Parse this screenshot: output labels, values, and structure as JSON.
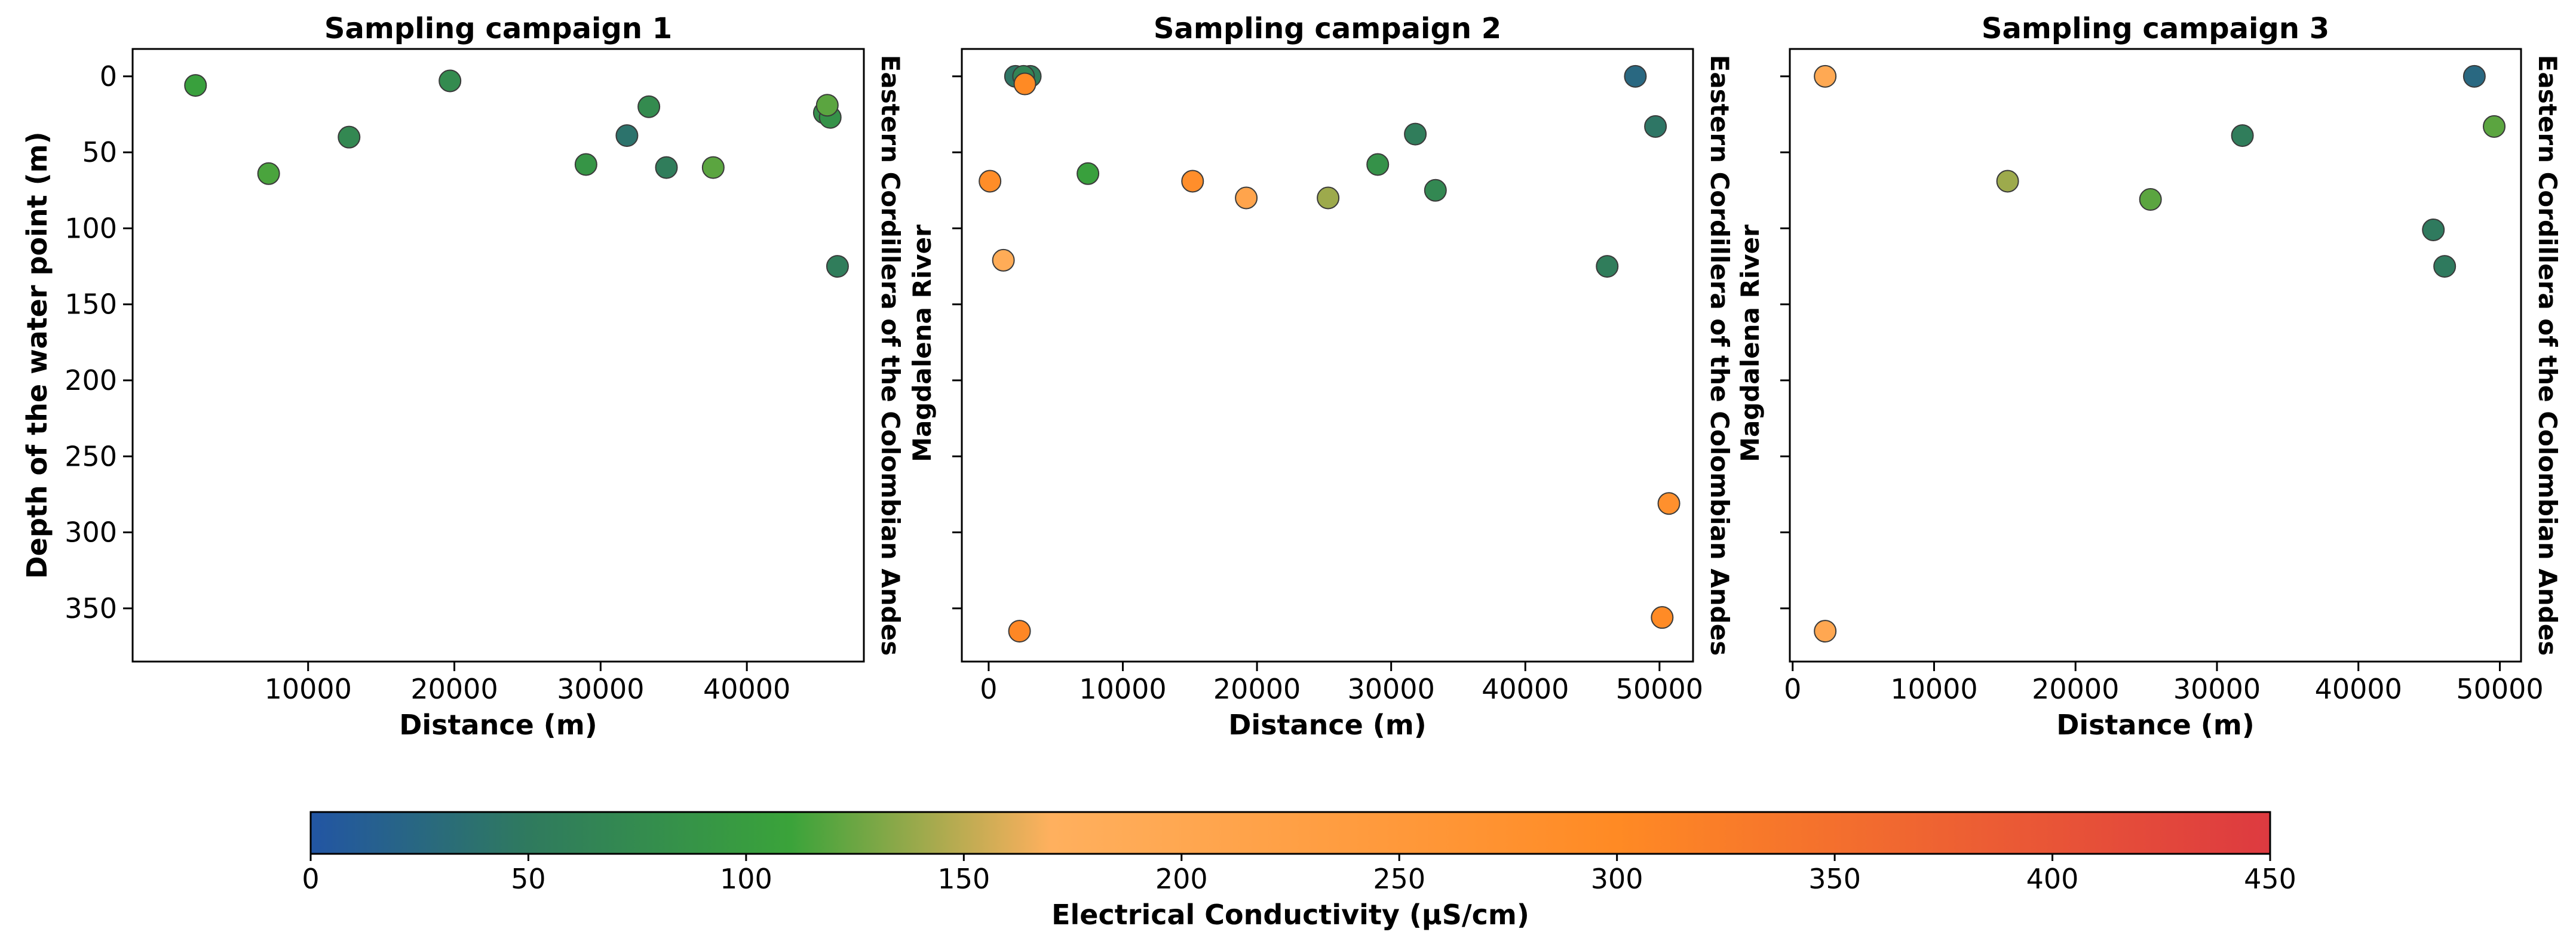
{
  "chart_data": {
    "type": "scatter",
    "ylabel": "Depth of the water point (m)",
    "xlabel": "Distance (m)",
    "y_ticks": [
      0,
      50,
      100,
      150,
      200,
      250,
      300,
      350
    ],
    "ylim": [
      385,
      -18
    ],
    "colorbar": {
      "label": "Electrical Conductivity (μS/cm)",
      "range": [
        0,
        450
      ],
      "ticks": [
        0,
        50,
        100,
        150,
        200,
        250,
        300,
        350,
        400,
        450
      ],
      "colors": [
        "#2255a4",
        "#2f7a5e",
        "#3aa33a",
        "#ffb05e",
        "#ff8a24",
        "#dd3a40"
      ],
      "stops": [
        0,
        50,
        110,
        170,
        300,
        450
      ]
    },
    "panels": [
      {
        "title": "Sampling campaign 1",
        "xlim": [
          -2000,
          48000
        ],
        "x_ticks": [
          10000,
          20000,
          30000,
          40000
        ],
        "right_label": "Eastern Cordillera of the Colombian Andes",
        "left_label": "",
        "show_y_ticklabels": true,
        "points": [
          {
            "x": 2300,
            "y": 6,
            "ec": 105
          },
          {
            "x": 7300,
            "y": 64,
            "ec": 115
          },
          {
            "x": 12800,
            "y": 40,
            "ec": 70
          },
          {
            "x": 19700,
            "y": 3,
            "ec": 75
          },
          {
            "x": 29000,
            "y": 58,
            "ec": 90
          },
          {
            "x": 31800,
            "y": 39,
            "ec": 40
          },
          {
            "x": 33300,
            "y": 20,
            "ec": 75
          },
          {
            "x": 34500,
            "y": 60,
            "ec": 55
          },
          {
            "x": 37700,
            "y": 60,
            "ec": 120
          },
          {
            "x": 45300,
            "y": 24,
            "ec": 80
          },
          {
            "x": 45700,
            "y": 27,
            "ec": 85
          },
          {
            "x": 45500,
            "y": 19,
            "ec": 120
          },
          {
            "x": 46200,
            "y": 125,
            "ec": 55
          }
        ]
      },
      {
        "title": "Sampling campaign 2",
        "xlim": [
          -2000,
          52500
        ],
        "x_ticks": [
          0,
          10000,
          20000,
          30000,
          40000,
          50000
        ],
        "right_label": "Eastern Cordillera of the Colombian Andes",
        "left_label": "Magdalena River",
        "show_y_ticklabels": false,
        "points": [
          {
            "x": 2000,
            "y": 0,
            "ec": 45
          },
          {
            "x": 3100,
            "y": 0,
            "ec": 55
          },
          {
            "x": 2600,
            "y": 0,
            "ec": 65
          },
          {
            "x": 2700,
            "y": 5,
            "ec": 300
          },
          {
            "x": 100,
            "y": 69,
            "ec": 290
          },
          {
            "x": 1100,
            "y": 121,
            "ec": 185
          },
          {
            "x": 2300,
            "y": 365,
            "ec": 305
          },
          {
            "x": 7400,
            "y": 64,
            "ec": 105
          },
          {
            "x": 15200,
            "y": 69,
            "ec": 285
          },
          {
            "x": 19200,
            "y": 80,
            "ec": 210
          },
          {
            "x": 25300,
            "y": 80,
            "ec": 140
          },
          {
            "x": 29000,
            "y": 58,
            "ec": 85
          },
          {
            "x": 31800,
            "y": 38,
            "ec": 55
          },
          {
            "x": 33300,
            "y": 75,
            "ec": 70
          },
          {
            "x": 46100,
            "y": 125,
            "ec": 55
          },
          {
            "x": 48200,
            "y": 0,
            "ec": 25
          },
          {
            "x": 49700,
            "y": 33,
            "ec": 45
          },
          {
            "x": 50700,
            "y": 281,
            "ec": 280
          },
          {
            "x": 50200,
            "y": 356,
            "ec": 295
          }
        ]
      },
      {
        "title": "Sampling campaign 3",
        "xlim": [
          -200,
          51500
        ],
        "x_ticks": [
          0,
          10000,
          20000,
          30000,
          40000,
          50000
        ],
        "right_label": "Eastern Cordillera of the Colombian Andes",
        "left_label": "Magdalena River",
        "show_y_ticklabels": false,
        "points": [
          {
            "x": 2300,
            "y": 0,
            "ec": 195
          },
          {
            "x": 2300,
            "y": 365,
            "ec": 200
          },
          {
            "x": 15200,
            "y": 69,
            "ec": 140
          },
          {
            "x": 25300,
            "y": 81,
            "ec": 120
          },
          {
            "x": 31800,
            "y": 39,
            "ec": 55
          },
          {
            "x": 45300,
            "y": 101,
            "ec": 50
          },
          {
            "x": 46100,
            "y": 125,
            "ec": 50
          },
          {
            "x": 48200,
            "y": 0,
            "ec": 25
          },
          {
            "x": 49600,
            "y": 33,
            "ec": 120
          }
        ]
      }
    ]
  }
}
